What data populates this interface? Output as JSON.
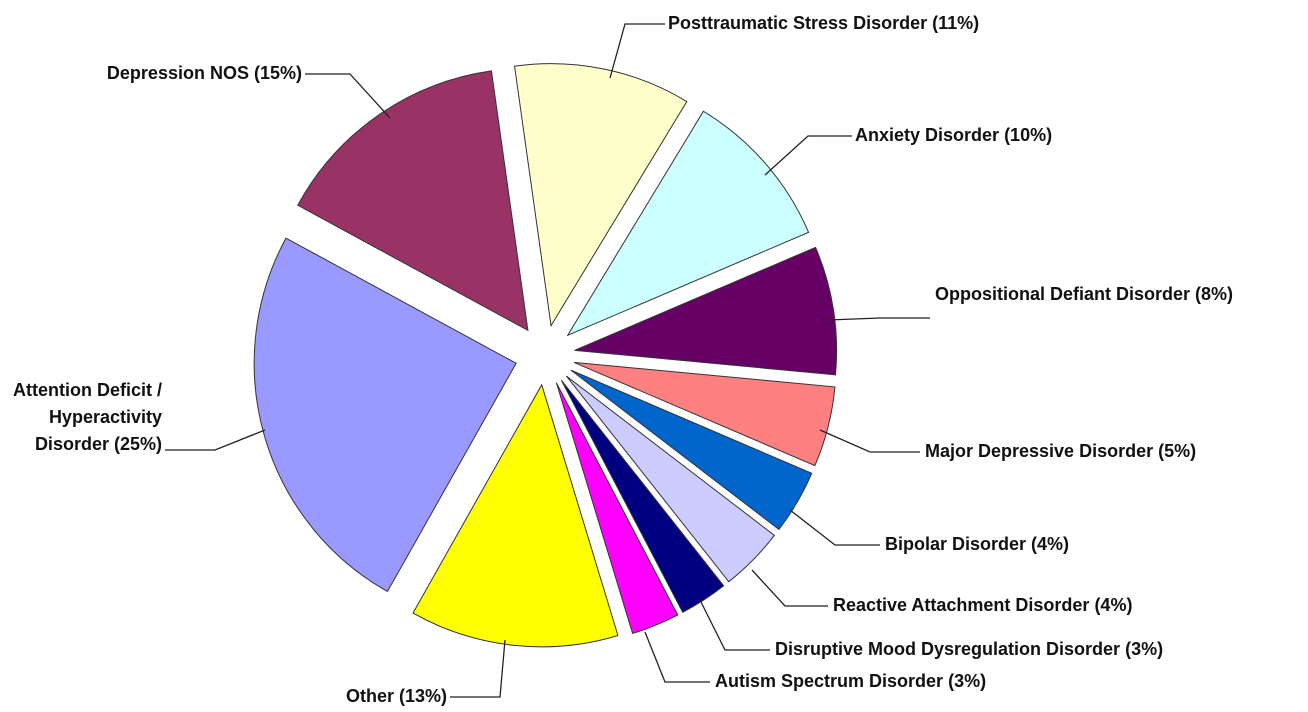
{
  "chart_data": {
    "type": "pie",
    "categories": [
      "Posttraumatic Stress Disorder",
      "Anxiety Disorder",
      "Oppositional Defiant Disorder",
      "Major Depressive Disorder",
      "Bipolar Disorder",
      "Reactive Attachment Disorder",
      "Disruptive Mood Dysregulation Disorder",
      "Autism Spectrum Disorder",
      "Other",
      "Attention Deficit / Hyperactivity Disorder",
      "Depression NOS"
    ],
    "values": [
      11,
      10,
      8,
      5,
      4,
      4,
      3,
      3,
      13,
      25,
      15
    ],
    "value_labels": [
      "(11%)",
      "(10%)",
      "(8%)",
      "(5%)",
      "(4%)",
      "(4%)",
      "(3%)",
      "(3%)",
      "(13%)",
      "(25%)",
      "(15%)"
    ],
    "colors": [
      "#ffffcc",
      "#ccffff",
      "#660066",
      "#ff8080",
      "#0066cc",
      "#ccccff",
      "#000080",
      "#ff00ff",
      "#ffff00",
      "#9999ff",
      "#993366"
    ]
  }
}
